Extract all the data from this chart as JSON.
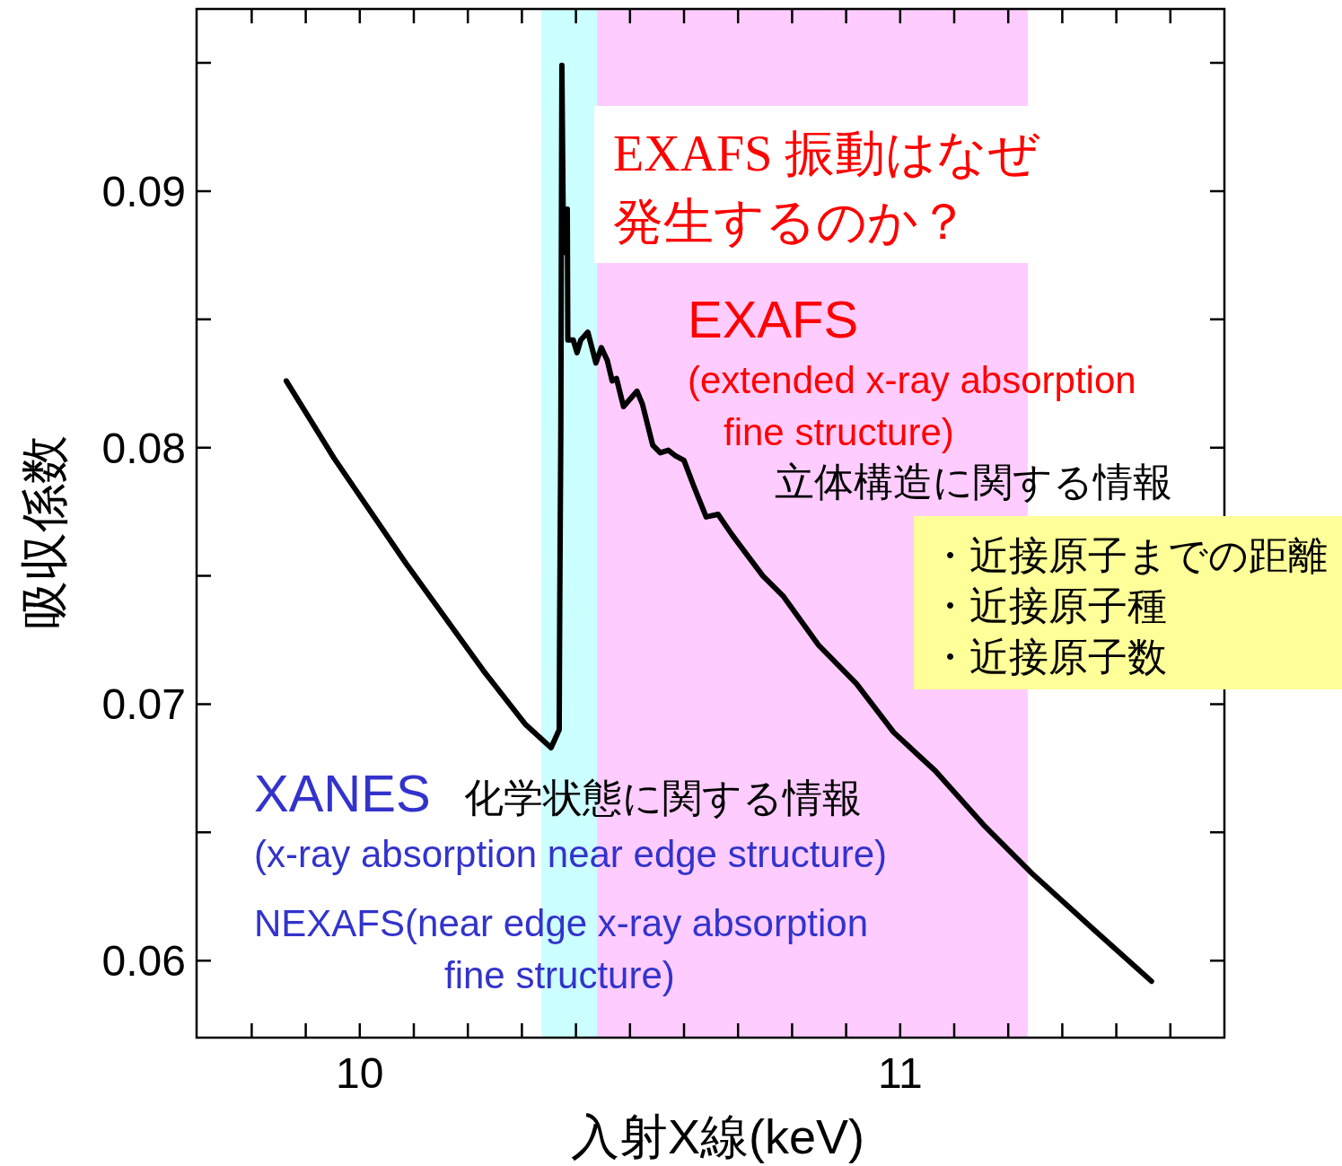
{
  "chart_data": {
    "type": "line",
    "xlabel": "入射X線(keV)",
    "ylabel": "吸収係数",
    "xlim": [
      9.698,
      11.6
    ],
    "ylim": [
      0.057,
      0.0971
    ],
    "xticks": [
      {
        "value": 9.8,
        "label": null
      },
      {
        "value": 9.9,
        "label": null
      },
      10,
      {
        "value": 10.1,
        "label": null
      },
      {
        "value": 10.2,
        "label": null
      },
      {
        "value": 10.3,
        "label": null
      },
      {
        "value": 10.4,
        "label": null
      },
      {
        "value": 10.5,
        "label": null
      },
      {
        "value": 10.6,
        "label": null
      },
      {
        "value": 10.7,
        "label": null
      },
      {
        "value": 10.8,
        "label": null
      },
      {
        "value": 10.9,
        "label": null
      },
      11,
      {
        "value": 11.1,
        "label": null
      },
      {
        "value": 11.2,
        "label": null
      },
      {
        "value": 11.3,
        "label": null
      },
      {
        "value": 11.4,
        "label": null
      },
      {
        "value": 11.5,
        "label": null
      }
    ],
    "yticks": [
      0.06,
      {
        "value": 0.065,
        "label": null
      },
      0.07,
      {
        "value": 0.075,
        "label": null
      },
      0.08,
      {
        "value": 0.085,
        "label": null
      },
      0.09,
      {
        "value": 0.095,
        "label": null
      }
    ],
    "grid": false,
    "marker": "none",
    "line_style": "solid",
    "bands": [
      {
        "axis": "x",
        "from": 10.336,
        "to": 10.439,
        "color": "#ccffff"
      },
      {
        "axis": "x",
        "from": 10.439,
        "to": 11.236,
        "color": "#ffccff"
      }
    ],
    "series": [
      {
        "color": "#000000",
        "x": [
          9.864,
          9.952,
          10.085,
          10.229,
          10.307,
          10.354,
          10.369,
          10.37,
          10.372,
          10.374,
          10.377,
          10.384,
          10.385,
          10.395,
          10.402,
          10.409,
          10.422,
          10.437,
          10.447,
          10.458,
          10.467,
          10.475,
          10.488,
          10.513,
          10.523,
          10.542,
          10.556,
          10.571,
          10.583,
          10.6,
          10.618,
          10.641,
          10.663,
          10.689,
          10.721,
          10.746,
          10.784,
          10.849,
          10.919,
          10.988,
          11.065,
          11.154,
          11.244,
          11.359,
          11.465
        ],
        "values": [
          0.0826,
          0.0796,
          0.0755,
          0.0713,
          0.0692,
          0.0683,
          0.069,
          0.0736,
          0.0806,
          0.0949,
          0.0876,
          0.0893,
          0.0842,
          0.0842,
          0.0837,
          0.0842,
          0.0845,
          0.0833,
          0.0839,
          0.0834,
          0.0826,
          0.0827,
          0.0816,
          0.0822,
          0.0817,
          0.0801,
          0.0798,
          0.0799,
          0.0797,
          0.0795,
          0.0785,
          0.0773,
          0.0774,
          0.0766,
          0.0757,
          0.075,
          0.0742,
          0.0723,
          0.0708,
          0.0689,
          0.0674,
          0.0653,
          0.0634,
          0.0612,
          0.0592
        ]
      }
    ],
    "annotations": [
      "EXAFS 振動はなぜ",
      "発生するのか？",
      "EXAFS",
      "(extended x-ray absorption",
      "fine structure)",
      "立体構造に関する情報",
      "・近接原子までの距離",
      "・近接原子種",
      "・近接原子数",
      "XANES",
      "化学状態に関する情報",
      "(x-ray absorption near edge structure)",
      "NEXAFS(near edge x-ray absorption",
      "fine structure)"
    ]
  }
}
